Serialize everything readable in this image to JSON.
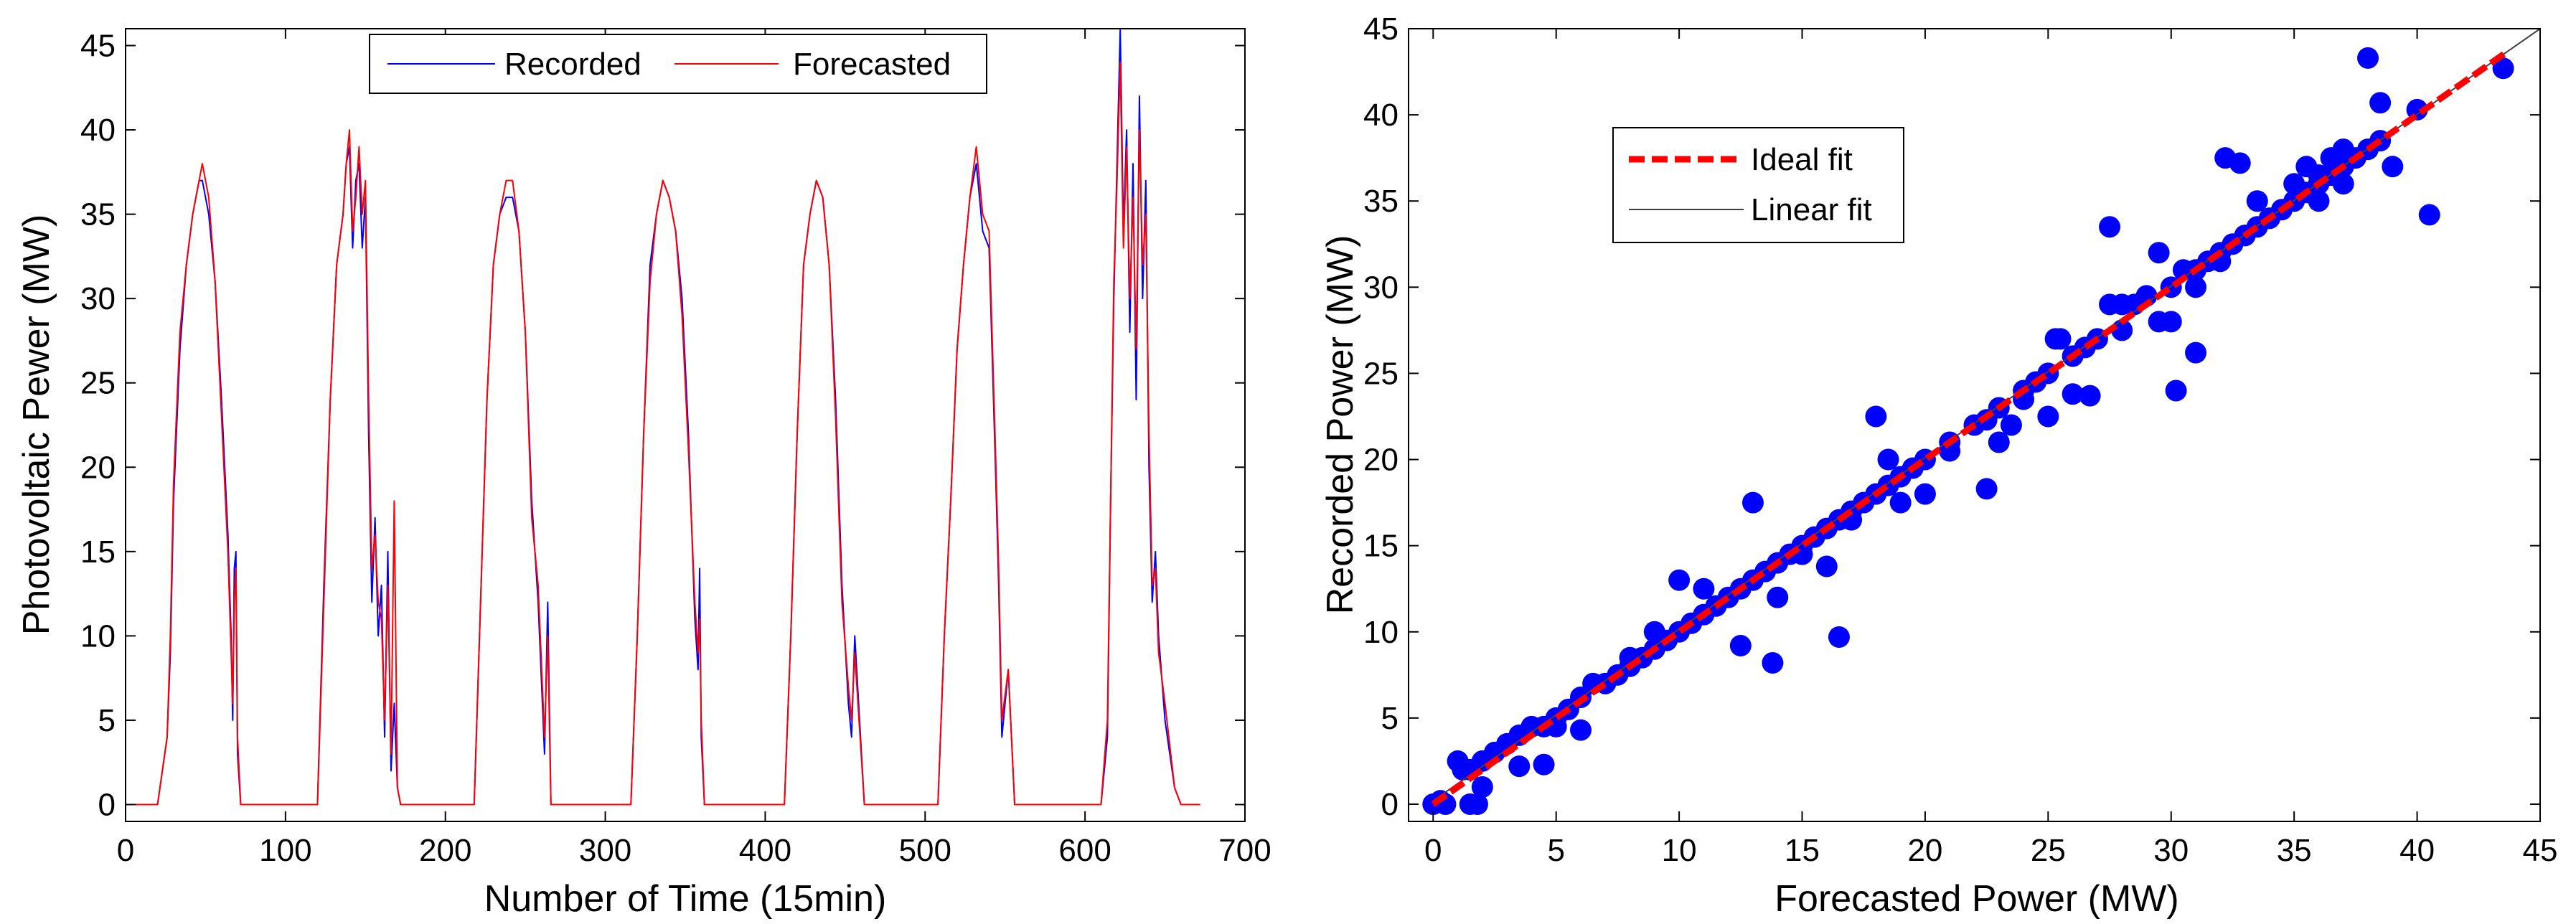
{
  "chart_data": [
    {
      "type": "line",
      "xlabel": "Number of Time (15min)",
      "ylabel": "Photovoltaic Pewer (MW)",
      "xlim": [
        0,
        700
      ],
      "ylim": [
        -1,
        46
      ],
      "xticks": [
        0,
        100,
        200,
        300,
        400,
        500,
        600,
        700
      ],
      "yticks": [
        0,
        5,
        10,
        15,
        20,
        25,
        30,
        35,
        40,
        45
      ],
      "legend": [
        "Recorded",
        "Forecasted"
      ],
      "legend_position": "top-center",
      "series": [
        {
          "name": "Recorded",
          "color": "#0000ff",
          "x": [
            0,
            20,
            26,
            28,
            30,
            34,
            38,
            42,
            46,
            48,
            52,
            56,
            60,
            64,
            66,
            67,
            68,
            69,
            70,
            72,
            80,
            115,
            120,
            124,
            128,
            132,
            136,
            138,
            140,
            142,
            144,
            146,
            148,
            150,
            152,
            154,
            156,
            158,
            160,
            162,
            164,
            166,
            168,
            170,
            172,
            176,
            210,
            218,
            222,
            226,
            230,
            234,
            238,
            242,
            246,
            250,
            254,
            258,
            262,
            264,
            266,
            272,
            310,
            316,
            320,
            324,
            328,
            332,
            336,
            340,
            344,
            348,
            352,
            356,
            358,
            359,
            360,
            362,
            366,
            405,
            412,
            416,
            420,
            424,
            428,
            432,
            436,
            440,
            444,
            448,
            452,
            454,
            456,
            462,
            500,
            506,
            508,
            512,
            516,
            520,
            524,
            528,
            532,
            536,
            540,
            544,
            546,
            548,
            552,
            556,
            600,
            606,
            610,
            614,
            616,
            618,
            620,
            622,
            624,
            626,
            628,
            630,
            632,
            634,
            636,
            638,
            640,
            642,
            644,
            646,
            650,
            656,
            660,
            672
          ],
          "y": [
            0,
            0,
            4,
            9,
            18,
            27,
            32,
            35,
            37,
            37,
            35,
            31,
            24,
            16,
            10,
            5,
            14,
            15,
            3,
            0,
            0,
            0,
            0,
            13,
            24,
            32,
            35,
            38,
            39,
            33,
            37,
            38,
            33,
            36,
            22,
            12,
            17,
            10,
            13,
            4,
            15,
            2,
            6,
            1,
            0,
            0,
            0,
            0,
            12,
            24,
            32,
            35,
            36,
            36,
            34,
            28,
            18,
            12,
            3,
            12,
            0,
            0,
            0,
            0,
            10,
            22,
            32,
            35,
            37,
            36,
            34,
            30,
            22,
            11,
            8,
            14,
            4,
            0,
            0,
            0,
            0,
            10,
            22,
            32,
            35,
            37,
            36,
            32,
            24,
            13,
            6,
            4,
            10,
            0,
            0,
            0,
            0,
            10,
            18,
            27,
            32,
            36,
            38,
            34,
            33,
            20,
            13,
            4,
            8,
            0,
            0,
            0,
            0,
            4,
            18,
            30,
            38,
            46,
            34,
            40,
            28,
            38,
            24,
            42,
            30,
            37,
            20,
            12,
            15,
            10,
            5,
            1,
            0,
            0
          ]
        },
        {
          "name": "Forecasted",
          "color": "#ff0000",
          "x": [
            0,
            20,
            26,
            28,
            30,
            34,
            38,
            42,
            46,
            48,
            52,
            56,
            60,
            64,
            66,
            67,
            68,
            69,
            70,
            72,
            80,
            115,
            120,
            124,
            128,
            132,
            136,
            138,
            140,
            142,
            144,
            146,
            148,
            150,
            152,
            154,
            156,
            158,
            160,
            162,
            164,
            166,
            168,
            170,
            172,
            176,
            210,
            218,
            222,
            226,
            230,
            234,
            238,
            242,
            246,
            250,
            254,
            258,
            262,
            264,
            266,
            272,
            310,
            316,
            320,
            324,
            328,
            332,
            336,
            340,
            344,
            348,
            352,
            356,
            358,
            359,
            360,
            362,
            366,
            405,
            412,
            416,
            420,
            424,
            428,
            432,
            436,
            440,
            444,
            448,
            452,
            454,
            456,
            462,
            500,
            506,
            508,
            512,
            516,
            520,
            524,
            528,
            532,
            536,
            540,
            544,
            546,
            548,
            552,
            556,
            600,
            606,
            610,
            614,
            616,
            618,
            620,
            622,
            624,
            626,
            628,
            630,
            632,
            634,
            636,
            638,
            640,
            642,
            644,
            646,
            650,
            656,
            660,
            672
          ],
          "y": [
            0,
            0,
            4,
            10,
            19,
            28,
            32,
            35,
            37,
            38,
            36,
            31,
            23,
            15,
            9,
            6,
            12,
            14,
            4,
            0,
            0,
            0,
            0,
            12,
            24,
            32,
            35,
            38,
            40,
            34,
            36,
            39,
            35,
            37,
            24,
            14,
            16,
            12,
            11,
            5,
            13,
            3,
            18,
            1,
            0,
            0,
            0,
            0,
            12,
            24,
            32,
            35,
            37,
            37,
            34,
            28,
            17,
            13,
            4,
            10,
            0,
            0,
            0,
            0,
            10,
            22,
            31,
            35,
            37,
            36,
            34,
            29,
            21,
            12,
            9,
            11,
            5,
            0,
            0,
            0,
            0,
            10,
            22,
            32,
            35,
            37,
            36,
            32,
            23,
            12,
            7,
            5,
            9,
            0,
            0,
            0,
            0,
            10,
            18,
            27,
            32,
            36,
            39,
            35,
            34,
            21,
            14,
            5,
            8,
            0,
            0,
            0,
            0,
            5,
            18,
            31,
            37,
            44,
            33,
            39,
            30,
            36,
            27,
            40,
            32,
            35,
            22,
            13,
            14,
            9,
            6,
            1,
            0,
            0
          ]
        }
      ]
    },
    {
      "type": "scatter",
      "xlabel": "Forecasted Power (MW)",
      "ylabel": "Recorded Power (MW)",
      "xlim": [
        -1,
        45
      ],
      "ylim": [
        -1,
        45
      ],
      "xticks": [
        0,
        5,
        10,
        15,
        20,
        25,
        30,
        35,
        40,
        45
      ],
      "yticks": [
        0,
        5,
        10,
        15,
        20,
        25,
        30,
        35,
        40,
        45
      ],
      "legend": [
        "Ideal fit",
        "Linear fit"
      ],
      "legend_position": "top-left",
      "series": [
        {
          "name": "Data",
          "color": "#0000ff",
          "x": [
            0,
            0.3,
            0.5,
            1,
            1.2,
            1.5,
            2,
            1.8,
            2.5,
            3,
            3.5,
            4,
            4.5,
            5,
            5.5,
            6,
            6.5,
            7,
            7.5,
            8,
            8.5,
            9,
            9.5,
            10,
            10.5,
            11,
            11.5,
            12,
            12.5,
            13,
            13.5,
            14,
            14.5,
            15,
            15.5,
            16,
            16.5,
            17,
            17.5,
            18,
            18.5,
            19,
            19.5,
            20,
            21,
            22,
            22.5,
            23,
            23.5,
            24,
            24.5,
            25,
            25.5,
            26,
            26.5,
            27,
            27.5,
            28,
            28.5,
            29,
            29.5,
            30,
            30.5,
            31,
            31.5,
            32,
            32.5,
            33,
            33.5,
            34,
            34.5,
            35,
            35.5,
            36,
            36.5,
            37,
            37.5,
            38,
            38.5,
            39,
            40,
            13,
            16.5,
            12.5,
            13.8,
            18,
            18.5,
            22.5,
            25.3,
            27.5,
            26.7,
            29.5,
            30.2,
            31,
            32.2,
            32.8,
            38,
            38.5,
            40.5,
            43.5,
            35.5,
            36,
            33.5,
            34,
            35,
            36.5,
            37,
            1.5,
            2,
            3.5,
            4.5,
            5,
            6,
            7,
            8,
            9,
            10,
            11,
            14,
            15,
            16,
            17,
            19,
            20,
            21,
            23,
            24,
            25,
            26,
            28,
            30,
            31,
            32,
            33,
            36,
            37
          ],
          "y": [
            0,
            0.2,
            0,
            2.5,
            2,
            2,
            1,
            0,
            3,
            3.5,
            4,
            4.5,
            4.5,
            5,
            5.5,
            6.2,
            7,
            7,
            7.5,
            8,
            8.5,
            9,
            9.5,
            10,
            10.5,
            11,
            11.5,
            12,
            12.5,
            13,
            13.5,
            14,
            14.5,
            15,
            15.5,
            16,
            16.5,
            17,
            17.5,
            18,
            18.5,
            19,
            19.5,
            20,
            21,
            22,
            18.3,
            23,
            22,
            24,
            24.5,
            25,
            27,
            26,
            26.5,
            27,
            29,
            29,
            29,
            29.5,
            32,
            30,
            31,
            31,
            31.5,
            32,
            32.5,
            33,
            33.5,
            34,
            34.5,
            35,
            35.5,
            36,
            36.5,
            37,
            37.5,
            38,
            38.5,
            37,
            40.3,
            17.5,
            9.7,
            9.2,
            8.2,
            22.5,
            20,
            22.3,
            27,
            33.5,
            23.7,
            28,
            24,
            26.2,
            37.5,
            37.2,
            43.3,
            40.7,
            34.2,
            42.7,
            37,
            36.5,
            35,
            34,
            36,
            37.5,
            38,
            0,
            2.5,
            2.2,
            2.3,
            4.5,
            4.3,
            7,
            8.5,
            10,
            13,
            12.5,
            12,
            14.5,
            13.8,
            16.5,
            17.5,
            18,
            20.5,
            21,
            23.5,
            22.5,
            23.8,
            27.5,
            28,
            30,
            31.5,
            33,
            35,
            36
          ]
        },
        {
          "name": "Ideal fit",
          "color": "#ff0000",
          "x": [
            0,
            43.7
          ],
          "y": [
            0,
            43.7
          ]
        },
        {
          "name": "Linear fit",
          "color": "#404040",
          "x": [
            0,
            45
          ],
          "y": [
            0.2,
            45
          ]
        }
      ]
    }
  ]
}
